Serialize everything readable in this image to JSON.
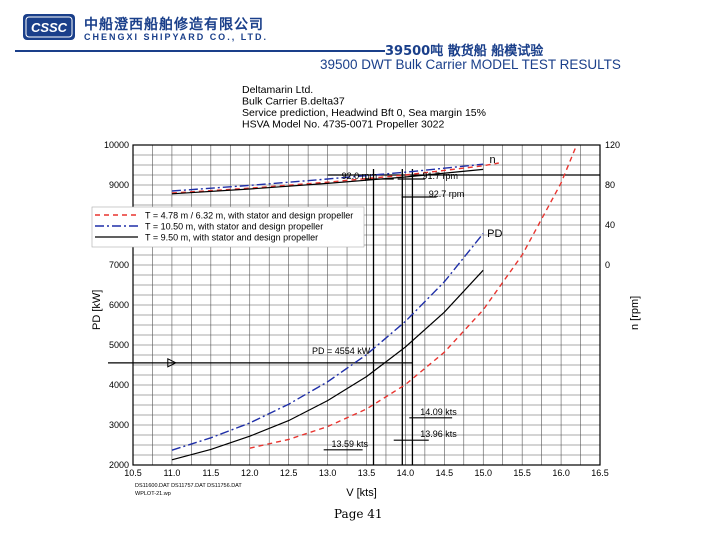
{
  "header": {
    "logo_text": "CSSC",
    "company_cn": "中船澄西船舶修造有限公司",
    "company_en": "CHENGXI SHIPYARD CO., LTD.",
    "title_cn": "39500吨 散货船 船模试验",
    "title_en": "39500 DWT Bulk Carrier MODEL TEST RESULTS"
  },
  "footer": {
    "page": "Page 41"
  },
  "colors": {
    "brand": "#1a3f8a",
    "red": "#e8342f",
    "blue": "#1f2fa8",
    "black": "#000000"
  },
  "chart_data": {
    "type": "line",
    "title_lines": [
      "Deltamarin Ltd.",
      "Bulk Carrier B.delta37",
      "Service prediction, Headwind Bft 0, Sea margin 15%",
      "HSVA Model No. 4735-0071   Propeller 3022"
    ],
    "xlabel": "V [kts]",
    "ylabel_left": "PD [kW]",
    "ylabel_right": "n [rpm]",
    "xlim": [
      10.5,
      16.5
    ],
    "ylim_left": [
      2000,
      10000
    ],
    "right_ticks": [
      {
        "label": "120",
        "y": 10000
      },
      {
        "label": "80",
        "y": 9000
      },
      {
        "label": "40",
        "y": 8000
      },
      {
        "label": "0",
        "y": 7000
      }
    ],
    "x_ticks": [
      "10.5",
      "11.0",
      "11.5",
      "12.0",
      "12.5",
      "13.0",
      "13.5",
      "14.0",
      "14.5",
      "15.0",
      "15.5",
      "16.0",
      "16.5"
    ],
    "y_ticks": [
      "2000",
      "3000",
      "4000",
      "5000",
      "6000",
      "7000",
      "8000",
      "9000",
      "10000"
    ],
    "legend": {
      "placement": "top-left",
      "entries": [
        {
          "label": "T = 4.78 m / 6.32 m, with stator and design propeller",
          "style": "red-dashed"
        },
        {
          "label": "T = 10.50 m, with stator and design propeller",
          "style": "blue-dashdot"
        },
        {
          "label": "T = 9.50 m, with stator and design propeller",
          "style": "black-solid"
        }
      ]
    },
    "series": [
      {
        "style": "red-dashed",
        "x": [
          12.0,
          12.5,
          13.0,
          13.5,
          14.0,
          14.5,
          15.0,
          15.5,
          16.0,
          16.2
        ],
        "y": [
          2420,
          2640,
          2960,
          3400,
          4010,
          4820,
          5880,
          7250,
          9050,
          10000
        ]
      },
      {
        "style": "blue-dashdot",
        "x": [
          11.0,
          11.5,
          12.0,
          12.5,
          13.0,
          13.5,
          14.0,
          14.5,
          15.0
        ],
        "y": [
          2370,
          2680,
          3050,
          3520,
          4080,
          4760,
          5590,
          6580,
          7790
        ]
      },
      {
        "style": "black-solid",
        "x": [
          11.0,
          11.5,
          12.0,
          12.5,
          13.0,
          13.5,
          14.0,
          14.5,
          15.0
        ],
        "y": [
          2130,
          2390,
          2720,
          3110,
          3610,
          4210,
          4950,
          5820,
          6870
        ]
      }
    ],
    "rpm_series": [
      {
        "style": "red-dashed",
        "x": [
          11.0,
          12.0,
          13.0,
          14.0,
          15.0,
          15.2
        ],
        "y": [
          8800,
          8920,
          9070,
          9250,
          9480,
          9550
        ]
      },
      {
        "style": "blue-dashdot",
        "x": [
          11.0,
          12.0,
          13.0,
          14.0,
          15.0
        ],
        "y": [
          8850,
          8990,
          9150,
          9320,
          9520
        ]
      },
      {
        "style": "black-solid",
        "x": [
          11.0,
          12.0,
          13.0,
          14.0,
          15.0
        ],
        "y": [
          8780,
          8900,
          9040,
          9200,
          9390
        ]
      }
    ],
    "series_labels": [
      {
        "text": "n",
        "x": 15.08,
        "y": 9550
      },
      {
        "text": "PD",
        "x": 15.05,
        "y": 7700
      }
    ],
    "annotations": [
      {
        "text": "92.0 rpm",
        "x": 13.18,
        "y": 9150
      },
      {
        "text": "91.7 rpm",
        "x": 14.22,
        "y": 9150
      },
      {
        "text": "92.7 rpm",
        "x": 14.3,
        "y": 8700
      },
      {
        "text": "PD = 4554 kW",
        "x": 12.8,
        "y": 4780
      },
      {
        "text": "14.09 kts",
        "x": 14.19,
        "y": 3250
      },
      {
        "text": "13.96 kts",
        "x": 14.19,
        "y": 2700
      },
      {
        "text": "13.59 kts",
        "x": 13.05,
        "y": 2450
      }
    ],
    "reference": {
      "power": 4554,
      "speeds": [
        13.59,
        13.96,
        14.09
      ],
      "rpm_line_y": 9250
    },
    "footnote_lines": [
      "DS11600.DAT DS11757.DAT DS11756.DAT",
      "WPLOT-21.wp"
    ]
  }
}
